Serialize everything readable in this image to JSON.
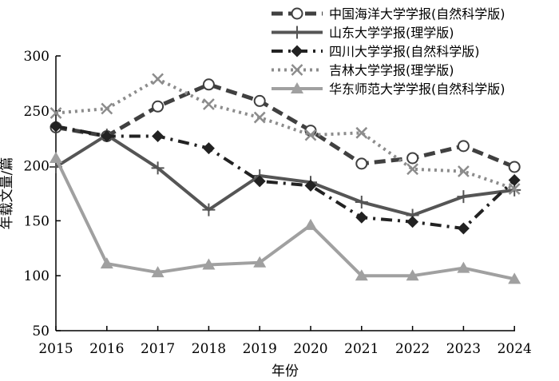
{
  "chart_data": {
    "type": "line",
    "title": "",
    "xlabel": "年份",
    "ylabel": "年载文量/篇",
    "ylim": [
      50,
      300
    ],
    "yticks": [
      50,
      100,
      150,
      200,
      250,
      300
    ],
    "categories": [
      "2015",
      "2016",
      "2017",
      "2018",
      "2019",
      "2020",
      "2021",
      "2022",
      "2023",
      "2024"
    ],
    "grid": false,
    "legend_position": "top-right",
    "series": [
      {
        "name": "中国海洋大学学报(自然科学版)",
        "values": [
          235,
          227,
          254,
          274,
          259,
          232,
          202,
          207,
          218,
          199
        ],
        "color": "#404040",
        "dash": "14,7",
        "marker": "open-circle",
        "width": 5
      },
      {
        "name": "山东大学学报(理学版)",
        "values": [
          199,
          228,
          198,
          160,
          191,
          185,
          167,
          155,
          172,
          178
        ],
        "color": "#555555",
        "dash": "",
        "marker": "plus",
        "width": 4
      },
      {
        "name": "四川大学学报(自然科学版)",
        "values": [
          236,
          227,
          227,
          216,
          186,
          182,
          153,
          149,
          143,
          187
        ],
        "color": "#222222",
        "dash": "14,7,3,7",
        "marker": "diamond",
        "width": 4
      },
      {
        "name": "吉林大学学报(理学版)",
        "values": [
          248,
          252,
          279,
          256,
          244,
          228,
          230,
          197,
          195,
          179
        ],
        "color": "#8c8c8c",
        "dash": "3,5",
        "marker": "x",
        "width": 4
      },
      {
        "name": "华东师范大学学报(自然科学版)",
        "values": [
          207,
          111,
          103,
          110,
          112,
          146,
          100,
          100,
          107,
          97
        ],
        "color": "#a0a0a0",
        "dash": "",
        "marker": "triangle",
        "width": 4
      }
    ]
  }
}
